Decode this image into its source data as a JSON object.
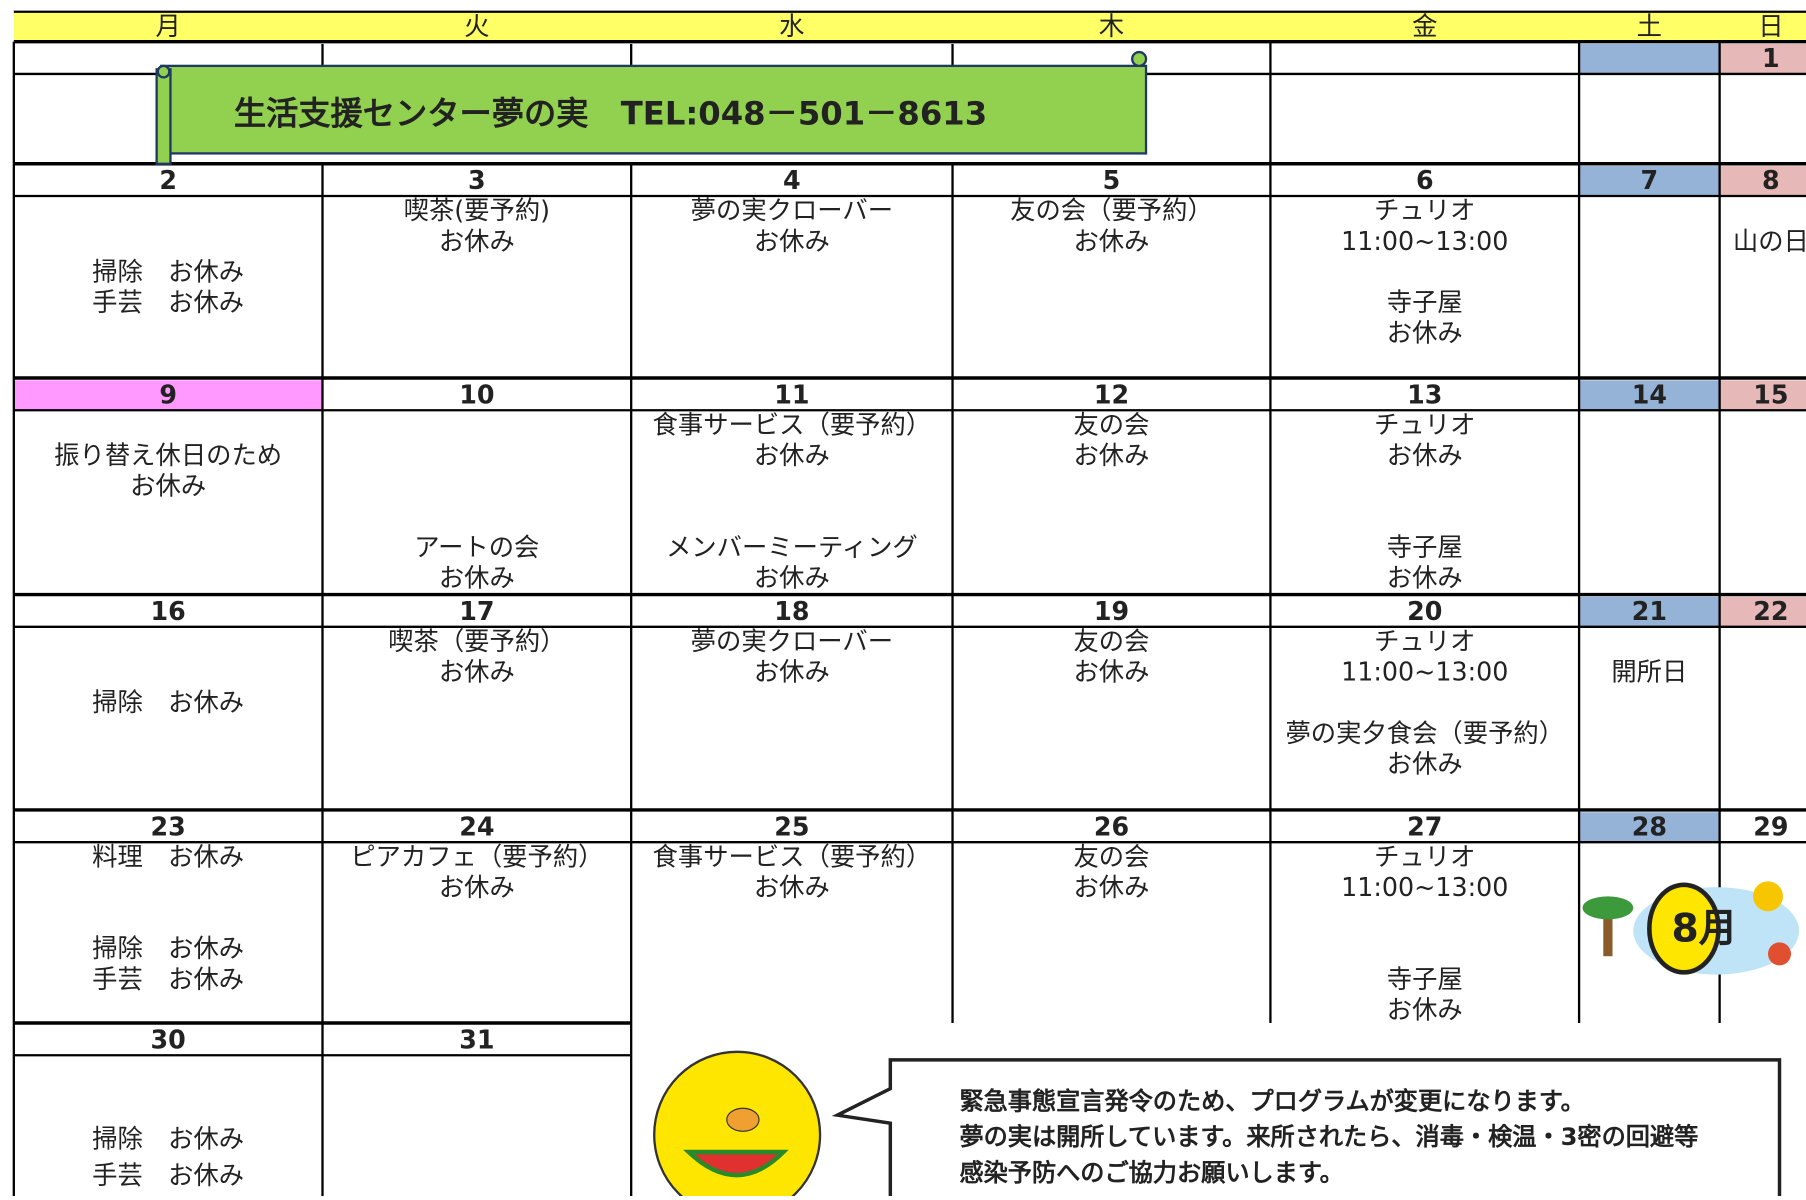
{
  "header": {
    "days": [
      "月",
      "火",
      "水",
      "木",
      "金",
      "土",
      "日"
    ]
  },
  "banner": {
    "text": "生活支援センター夢の実　TEL:048－501－8613"
  },
  "weeks": [
    {
      "cells": [
        {
          "date": null
        },
        {
          "date": null
        },
        {
          "date": null
        },
        {
          "date": null
        },
        {
          "date": null
        },
        {
          "date": null,
          "color": "#95b3d7"
        },
        {
          "date": 1,
          "color": "#e6b8b7"
        }
      ]
    },
    {
      "cells": [
        {
          "date": 2,
          "lines": [
            "掃除　お休み",
            "手芸　お休み"
          ]
        },
        {
          "date": 3,
          "lines": [
            "喫茶(要予約)",
            "お休み"
          ]
        },
        {
          "date": 4,
          "lines": [
            "夢の実クローバー",
            "お休み"
          ]
        },
        {
          "date": 5,
          "lines": [
            "友の会（要予約）",
            "お休み"
          ]
        },
        {
          "date": 6,
          "lines": [
            "チュリオ",
            "11:00~13:00",
            "寺子屋",
            "お休み"
          ]
        },
        {
          "date": 7,
          "color": "#95b3d7"
        },
        {
          "date": 8,
          "color": "#e6b8b7",
          "lines": [
            "山の日"
          ]
        }
      ]
    },
    {
      "cells": [
        {
          "date": 9,
          "color": "#ff99ff",
          "lines": [
            "振り替え休日のため",
            "お休み"
          ]
        },
        {
          "date": 10,
          "lines": [
            "アートの会",
            "お休み"
          ]
        },
        {
          "date": 11,
          "lines": [
            "食事サービス（要予約）",
            "お休み",
            "メンバーミーティング",
            "お休み"
          ]
        },
        {
          "date": 12,
          "lines": [
            "友の会",
            "お休み"
          ]
        },
        {
          "date": 13,
          "lines": [
            "チュリオ",
            "お休み",
            "寺子屋",
            "お休み"
          ]
        },
        {
          "date": 14,
          "color": "#95b3d7"
        },
        {
          "date": 15,
          "color": "#e6b8b7"
        }
      ]
    },
    {
      "cells": [
        {
          "date": 16,
          "lines": [
            "掃除　お休み"
          ]
        },
        {
          "date": 17,
          "lines": [
            "喫茶（要予約）",
            "お休み"
          ]
        },
        {
          "date": 18,
          "lines": [
            "夢の実クローバー",
            "お休み"
          ]
        },
        {
          "date": 19,
          "lines": [
            "友の会",
            "お休み"
          ]
        },
        {
          "date": 20,
          "lines": [
            "チュリオ",
            "11:00~13:00",
            "夢の実夕食会（要予約）",
            "お休み"
          ]
        },
        {
          "date": 21,
          "color": "#95b3d7",
          "lines": [
            "開所日"
          ]
        },
        {
          "date": 22,
          "color": "#e6b8b7"
        }
      ]
    },
    {
      "cells": [
        {
          "date": 23,
          "lines": [
            "料理　お休み",
            "掃除　お休み",
            "手芸　お休み"
          ]
        },
        {
          "date": 24,
          "lines": [
            "ピアカフェ（要予約）",
            "お休み"
          ]
        },
        {
          "date": 25,
          "lines": [
            "食事サービス（要予約）",
            "お休み"
          ]
        },
        {
          "date": 26,
          "lines": [
            "友の会",
            "お休み"
          ]
        },
        {
          "date": 27,
          "lines": [
            "チュリオ",
            "11:00~13:00",
            "寺子屋",
            "お休み"
          ]
        },
        {
          "date": 28,
          "color": "#95b3d7"
        },
        {
          "date": 29
        }
      ]
    },
    {
      "cells": [
        {
          "date": 30,
          "lines": [
            "掃除　お休み",
            "手芸　お休み"
          ]
        },
        {
          "date": 31
        }
      ]
    }
  ],
  "decoration": {
    "label": "8月"
  },
  "notice": {
    "lines": [
      "緊急事態宣言発令のため、プログラムが変更になります。",
      "夢の実は開所しています。来所されたら、消毒・検温・3密の回避等",
      "感染予防へのご協力お願いします。"
    ]
  }
}
